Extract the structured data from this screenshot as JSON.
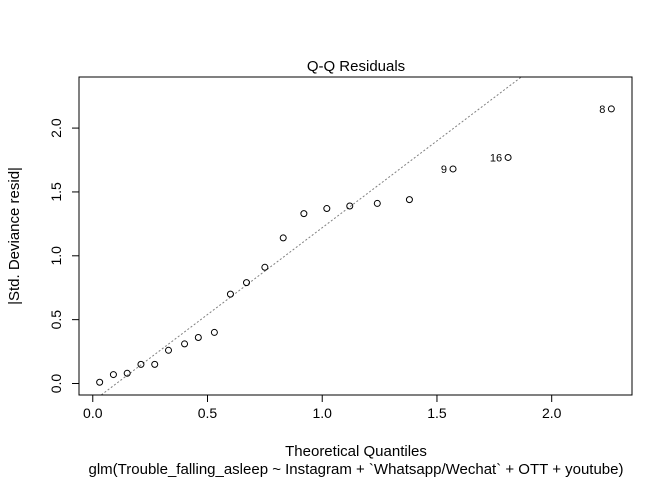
{
  "chart_data": {
    "type": "scatter",
    "title": "Q-Q Residuals",
    "xlabel": "Theoretical Quantiles",
    "ylabel": "|Std. Deviance resid|",
    "subtitle": "glm(Trouble_falling_asleep ~ Instagram + `Whatsapp/Wechat` + OTT + youtube)",
    "xlim": [
      -0.06,
      2.35
    ],
    "ylim": [
      -0.09,
      2.4
    ],
    "x_ticks": [
      0.0,
      0.5,
      1.0,
      1.5,
      2.0
    ],
    "x_tick_labels": [
      "0.0",
      "0.5",
      "1.0",
      "1.5",
      "2.0"
    ],
    "y_ticks": [
      0.0,
      0.5,
      1.0,
      1.5,
      2.0
    ],
    "y_tick_labels": [
      "0.0",
      "0.5",
      "1.0",
      "1.5",
      "2.0"
    ],
    "grid": false,
    "points": [
      {
        "x": 0.03,
        "y": 0.01,
        "label": ""
      },
      {
        "x": 0.09,
        "y": 0.07,
        "label": ""
      },
      {
        "x": 0.15,
        "y": 0.08,
        "label": ""
      },
      {
        "x": 0.21,
        "y": 0.15,
        "label": ""
      },
      {
        "x": 0.27,
        "y": 0.15,
        "label": ""
      },
      {
        "x": 0.33,
        "y": 0.26,
        "label": ""
      },
      {
        "x": 0.4,
        "y": 0.31,
        "label": ""
      },
      {
        "x": 0.46,
        "y": 0.36,
        "label": ""
      },
      {
        "x": 0.53,
        "y": 0.4,
        "label": ""
      },
      {
        "x": 0.6,
        "y": 0.7,
        "label": ""
      },
      {
        "x": 0.67,
        "y": 0.79,
        "label": ""
      },
      {
        "x": 0.75,
        "y": 0.91,
        "label": ""
      },
      {
        "x": 0.83,
        "y": 1.14,
        "label": ""
      },
      {
        "x": 0.92,
        "y": 1.33,
        "label": ""
      },
      {
        "x": 1.02,
        "y": 1.37,
        "label": ""
      },
      {
        "x": 1.12,
        "y": 1.39,
        "label": ""
      },
      {
        "x": 1.24,
        "y": 1.41,
        "label": ""
      },
      {
        "x": 1.38,
        "y": 1.44,
        "label": ""
      },
      {
        "x": 1.57,
        "y": 1.68,
        "label": "9"
      },
      {
        "x": 1.81,
        "y": 1.77,
        "label": "16"
      },
      {
        "x": 2.26,
        "y": 2.15,
        "label": "8"
      }
    ],
    "reference_line": {
      "intercept": -0.14,
      "slope": 1.36,
      "style": "dotted",
      "color": "#808080"
    }
  }
}
